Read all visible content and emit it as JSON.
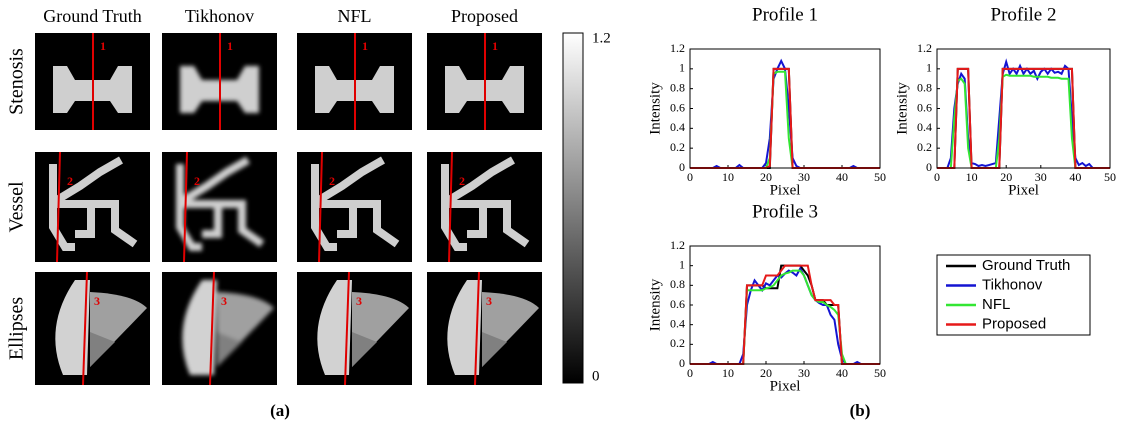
{
  "panel_a": {
    "column_titles": [
      "Ground Truth",
      "Tikhonov",
      "NFL",
      "Proposed"
    ],
    "row_labels": [
      "Stenosis",
      "Vessel",
      "Ellipses"
    ],
    "profile_labels": [
      "1",
      "2",
      "3"
    ],
    "colorbar_ticks": [
      0,
      1.2
    ],
    "caption": "(a)"
  },
  "panel_b": {
    "caption": "(b)"
  },
  "chart_data": [
    {
      "type": "line",
      "title": "Profile 1",
      "xlabel": "Pixel",
      "ylabel": "Intensity",
      "x": [
        0,
        1,
        2,
        3,
        4,
        5,
        6,
        7,
        8,
        9,
        10,
        11,
        12,
        13,
        14,
        15,
        16,
        17,
        18,
        19,
        20,
        21,
        22,
        23,
        24,
        25,
        26,
        27,
        28,
        29,
        30,
        31,
        32,
        33,
        34,
        35,
        36,
        37,
        38,
        39,
        40,
        41,
        42,
        43,
        44,
        45,
        46,
        47,
        48,
        49,
        50
      ],
      "xlim": [
        0,
        50
      ],
      "ylim": [
        0,
        1.2
      ],
      "xticks": [
        0,
        10,
        20,
        30,
        40,
        50
      ],
      "yticks": [
        0,
        0.2,
        0.4,
        0.6,
        0.8,
        1,
        1.2
      ],
      "series": [
        {
          "name": "Ground Truth",
          "color": "#000000",
          "values": [
            0,
            0,
            0,
            0,
            0,
            0,
            0,
            0,
            0,
            0,
            0,
            0,
            0,
            0,
            0,
            0,
            0,
            0,
            0,
            0,
            0,
            0,
            1,
            1,
            1,
            1,
            1,
            0,
            0,
            0,
            0,
            0,
            0,
            0,
            0,
            0,
            0,
            0,
            0,
            0,
            0,
            0,
            0,
            0,
            0,
            0,
            0,
            0,
            0,
            0,
            0
          ]
        },
        {
          "name": "Tikhonov",
          "color": "#1414d2",
          "values": [
            0,
            0,
            0,
            0,
            0,
            0,
            0,
            0.02,
            0,
            0,
            0,
            0,
            0,
            0.03,
            0,
            0,
            0,
            0,
            0,
            0,
            0.05,
            0.3,
            0.9,
            1,
            1.08,
            1,
            0.6,
            0.1,
            0.02,
            0,
            0,
            0,
            0,
            0,
            0,
            0,
            0,
            0,
            0,
            0,
            0,
            0,
            0,
            0.02,
            0,
            0,
            0,
            0,
            0,
            0,
            0
          ]
        },
        {
          "name": "NFL",
          "color": "#33e633",
          "values": [
            0,
            0,
            0,
            0,
            0,
            0,
            0,
            0,
            0,
            0,
            0,
            0,
            0,
            0,
            0,
            0,
            0,
            0,
            0,
            0,
            0,
            0.1,
            0.95,
            0.97,
            0.97,
            0.97,
            0.3,
            0,
            0,
            0,
            0,
            0,
            0,
            0,
            0,
            0,
            0,
            0,
            0,
            0,
            0,
            0,
            0,
            0,
            0,
            0,
            0,
            0,
            0,
            0,
            0
          ]
        },
        {
          "name": "Proposed",
          "color": "#e61919",
          "values": [
            0,
            0,
            0,
            0,
            0,
            0,
            0,
            0,
            0,
            0,
            0,
            0,
            0,
            0,
            0,
            0,
            0,
            0,
            0,
            0,
            0,
            0.02,
            1,
            1,
            1,
            1,
            1,
            0,
            0,
            0,
            0,
            0,
            0,
            0,
            0,
            0,
            0,
            0,
            0,
            0,
            0,
            0,
            0,
            0,
            0,
            0,
            0,
            0,
            0,
            0,
            0
          ]
        }
      ]
    },
    {
      "type": "line",
      "title": "Profile 2",
      "xlabel": "Pixel",
      "ylabel": "Intensity",
      "x": [
        0,
        1,
        2,
        3,
        4,
        5,
        6,
        7,
        8,
        9,
        10,
        11,
        12,
        13,
        14,
        15,
        16,
        17,
        18,
        19,
        20,
        21,
        22,
        23,
        24,
        25,
        26,
        27,
        28,
        29,
        30,
        31,
        32,
        33,
        34,
        35,
        36,
        37,
        38,
        39,
        40,
        41,
        42,
        43,
        44,
        45,
        46,
        47,
        48,
        49,
        50
      ],
      "xlim": [
        0,
        50
      ],
      "ylim": [
        0,
        1.2
      ],
      "xticks": [
        0,
        10,
        20,
        30,
        40,
        50
      ],
      "yticks": [
        0,
        0.2,
        0.4,
        0.6,
        0.8,
        1,
        1.2
      ],
      "series": [
        {
          "name": "Ground Truth",
          "color": "#000000",
          "values": [
            0,
            0,
            0,
            0,
            0,
            0,
            1,
            1,
            1,
            1,
            0,
            0,
            0,
            0,
            0,
            0,
            0,
            0,
            0,
            1,
            1,
            1,
            1,
            1,
            1,
            1,
            1,
            1,
            1,
            1,
            1,
            1,
            1,
            1,
            1,
            1,
            1,
            1,
            1,
            1,
            0,
            0,
            0,
            0,
            0,
            0,
            0,
            0,
            0,
            0,
            0
          ]
        },
        {
          "name": "Tikhonov",
          "color": "#1414d2",
          "values": [
            0,
            0,
            0,
            0,
            0.1,
            0.6,
            0.85,
            0.95,
            0.9,
            0.3,
            0.05,
            0.04,
            0.02,
            0.03,
            0.02,
            0.03,
            0.04,
            0.05,
            0.5,
            0.95,
            1.07,
            0.95,
            1,
            0.95,
            1.03,
            0.95,
            1,
            0.95,
            0.98,
            0.9,
            0.97,
            1,
            0.95,
            1,
            0.96,
            0.97,
            0.95,
            1.03,
            1,
            0.5,
            0.1,
            0.03,
            0.05,
            0.02,
            0.04,
            0,
            0,
            0,
            0,
            0,
            0
          ]
        },
        {
          "name": "NFL",
          "color": "#33e633",
          "values": [
            0,
            0,
            0,
            0,
            0,
            0.5,
            0.88,
            0.9,
            0.85,
            0.2,
            0,
            0,
            0,
            0,
            0,
            0,
            0,
            0,
            0.3,
            0.92,
            0.94,
            0.93,
            0.93,
            0.93,
            0.93,
            0.93,
            0.93,
            0.93,
            0.92,
            0.92,
            0.92,
            0.92,
            0.92,
            0.91,
            0.91,
            0.91,
            0.9,
            0.9,
            0.9,
            0.3,
            0,
            0,
            0,
            0,
            0,
            0,
            0,
            0,
            0,
            0,
            0
          ]
        },
        {
          "name": "Proposed",
          "color": "#e61919",
          "values": [
            0,
            0,
            0,
            0,
            0,
            0,
            1,
            1,
            1,
            1,
            0,
            0,
            0,
            0,
            0,
            0,
            0,
            0,
            0,
            1,
            1,
            1,
            1,
            1,
            1,
            1,
            1,
            1,
            1,
            1,
            1,
            1,
            1,
            1,
            1,
            1,
            1,
            1,
            1,
            1,
            0,
            0,
            0,
            0,
            0,
            0,
            0,
            0,
            0,
            0,
            0
          ]
        }
      ]
    },
    {
      "type": "line",
      "title": "Profile 3",
      "xlabel": "Pixel",
      "ylabel": "Intensity",
      "x": [
        0,
        1,
        2,
        3,
        4,
        5,
        6,
        7,
        8,
        9,
        10,
        11,
        12,
        13,
        14,
        15,
        16,
        17,
        18,
        19,
        20,
        21,
        22,
        23,
        24,
        25,
        26,
        27,
        28,
        29,
        30,
        31,
        32,
        33,
        34,
        35,
        36,
        37,
        38,
        39,
        40,
        41,
        42,
        43,
        44,
        45,
        46,
        47,
        48,
        49,
        50
      ],
      "xlim": [
        0,
        50
      ],
      "ylim": [
        0,
        1.2
      ],
      "xticks": [
        0,
        10,
        20,
        30,
        40,
        50
      ],
      "yticks": [
        0,
        0.2,
        0.4,
        0.6,
        0.8,
        1,
        1.2
      ],
      "legend": true,
      "series": [
        {
          "name": "Ground Truth",
          "color": "#000000",
          "values": [
            0,
            0,
            0,
            0,
            0,
            0,
            0,
            0,
            0,
            0,
            0,
            0,
            0,
            0,
            0,
            0.8,
            0.8,
            0.8,
            0.8,
            0.8,
            0.77,
            0.77,
            0.77,
            0.77,
            1,
            1,
            1,
            1,
            1,
            1,
            0.95,
            0.9,
            0.8,
            0.65,
            0.65,
            0.65,
            0.6,
            0.6,
            0.6,
            0.6,
            0,
            0,
            0,
            0,
            0,
            0,
            0,
            0,
            0,
            0,
            0
          ]
        },
        {
          "name": "Tikhonov",
          "color": "#1414d2",
          "values": [
            0,
            0,
            0,
            0,
            0,
            0,
            0.02,
            0,
            0,
            0,
            0,
            0,
            0,
            0,
            0.1,
            0.6,
            0.75,
            0.85,
            0.8,
            0.75,
            0.82,
            0.8,
            0.85,
            0.9,
            0.88,
            0.92,
            0.95,
            0.93,
            0.9,
            0.97,
            0.9,
            0.8,
            0.7,
            0.65,
            0.62,
            0.6,
            0.6,
            0.5,
            0.45,
            0.2,
            0.05,
            0,
            0,
            0,
            0.02,
            0,
            0,
            0,
            0,
            0,
            0
          ]
        },
        {
          "name": "NFL",
          "color": "#33e633",
          "values": [
            0,
            0,
            0,
            0,
            0,
            0,
            0,
            0,
            0,
            0,
            0,
            0,
            0,
            0,
            0,
            0.75,
            0.75,
            0.75,
            0.75,
            0.75,
            0.77,
            0.78,
            0.8,
            0.85,
            0.9,
            0.92,
            0.93,
            0.95,
            0.95,
            0.95,
            0.9,
            0.8,
            0.7,
            0.65,
            0.63,
            0.63,
            0.6,
            0.58,
            0.55,
            0.5,
            0.1,
            0,
            0,
            0,
            0,
            0,
            0,
            0,
            0,
            0,
            0
          ]
        },
        {
          "name": "Proposed",
          "color": "#e61919",
          "values": [
            0,
            0,
            0,
            0,
            0,
            0,
            0,
            0,
            0,
            0,
            0,
            0,
            0,
            0,
            0,
            0.8,
            0.8,
            0.8,
            0.8,
            0.8,
            0.9,
            0.9,
            0.9,
            0.9,
            0.95,
            1,
            1,
            1,
            1,
            1,
            1,
            1,
            0.8,
            0.65,
            0.65,
            0.65,
            0.65,
            0.65,
            0.6,
            0.6,
            0,
            0,
            0,
            0,
            0,
            0,
            0,
            0,
            0,
            0,
            0
          ]
        }
      ]
    }
  ]
}
